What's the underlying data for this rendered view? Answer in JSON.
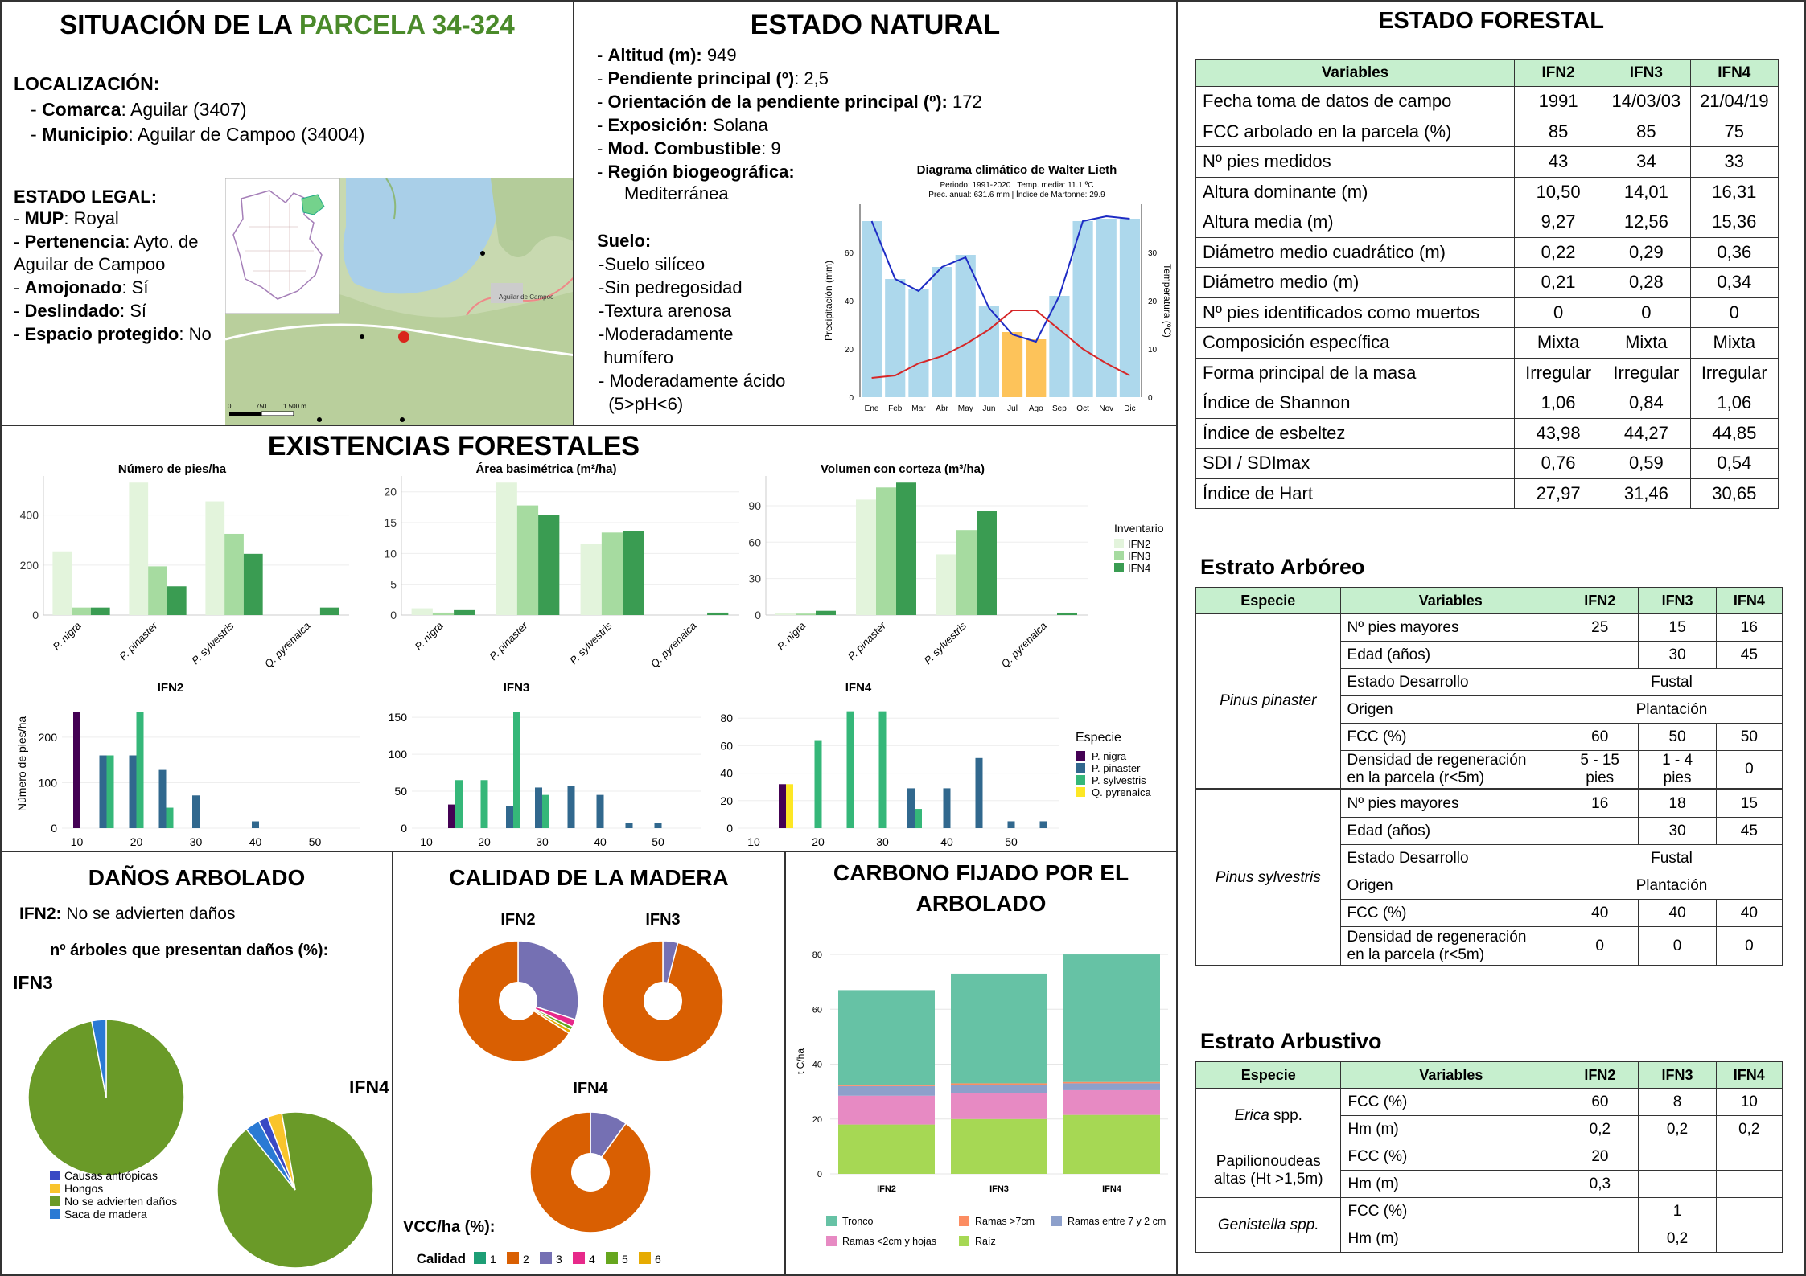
{
  "situacion": {
    "title_prefix": "SITUACIÓN DE LA ",
    "title_highlight": "PARCELA 34-324",
    "highlight_color": "#4a8a2a",
    "localizacion_label": "LOCALIZACIÓN:",
    "comarca_label": "Comarca",
    "comarca_value": ": Aguilar (3407)",
    "municipio_label": "Municipio",
    "municipio_value": ": Aguilar de Campoo  (34004)",
    "estado_legal_label": "ESTADO LEGAL:",
    "mup_label": "MUP",
    "mup_value": ": Royal",
    "pertenencia_label": "Pertenencia",
    "pertenencia_value": ": Ayto.  de",
    "pertenencia_value2": "Aguilar de Campoo",
    "amojonado_label": "Amojonado",
    "amojonado_value": ": Sí",
    "deslindado_label": "Deslindado",
    "deslindado_value": ": Sí",
    "espacio_label": "Espacio protegido",
    "espacio_value": ": No",
    "map": {
      "town_label": "Aguilar de Campoo",
      "scale_0": "0",
      "scale_1": "750",
      "scale_2": "1.500 m"
    }
  },
  "estado_natural": {
    "title": "ESTADO NATURAL",
    "items": [
      {
        "label": "Altitud (m):",
        "value": " 949"
      },
      {
        "label": "Pendiente principal (º)",
        "value": ": 2,5"
      },
      {
        "label": "Orientación  de la pendiente principal (º):",
        "value": " 172"
      },
      {
        "label": "Exposición:",
        "value": " Solana"
      },
      {
        "label": "Mod. Combustible",
        "value": ": 9"
      },
      {
        "label": "Región biogeográfica:",
        "value": ""
      }
    ],
    "region_value": "Mediterránea",
    "suelo_label": "Suelo:",
    "suelo_items": [
      "-Suelo silíceo",
      "-Sin pedregosidad",
      "-Textura arenosa",
      "-Moderadamente",
      " humífero",
      "- Moderadamente ácido",
      "  (5>pH<6)"
    ]
  },
  "climograma": {
    "title": "Diagrama climático de Walter Lieth",
    "subtitle1": "Periodo: 1991-2020 | Temp. media: 11.1 ºC",
    "subtitle2": "Prec. anual: 631.6 mm | Índice de Martonne: 29.9",
    "ylabel_left": "Precipitación (mm)",
    "ylabel_right": "Temperatura (ºC)",
    "months": [
      "Ene",
      "Feb",
      "Mar",
      "Abr",
      "May",
      "Jun",
      "Jul",
      "Ago",
      "Sep",
      "Oct",
      "Nov",
      "Dic"
    ],
    "precip": [
      73,
      49,
      45,
      54,
      59,
      38,
      27,
      24,
      42,
      73,
      74,
      74
    ],
    "temp": [
      4,
      4.5,
      7,
      8.5,
      11,
      14,
      18,
      18,
      14,
      10,
      7,
      4.5
    ],
    "precip_line": [
      73,
      49,
      44,
      54,
      58,
      37,
      26,
      23,
      42,
      73,
      75,
      74
    ],
    "dry_months": [
      6,
      7
    ],
    "left_ticks": [
      0,
      20,
      40,
      60
    ],
    "right_ticks": [
      0,
      10,
      20,
      30
    ],
    "bar_color": "#add8ec",
    "dry_color": "#fdc35a"
  },
  "estado_forestal": {
    "title": "ESTADO FORESTAL",
    "headers": [
      "Variables",
      "IFN2",
      "IFN3",
      "IFN4"
    ],
    "rows": [
      [
        "Fecha toma de datos de campo",
        "1991",
        "14/03/03",
        "21/04/19"
      ],
      [
        "FCC arbolado en la parcela (%)",
        "85",
        "85",
        "75"
      ],
      [
        "Nº pies medidos",
        "43",
        "34",
        "33"
      ],
      [
        "Altura dominante (m)",
        "10,50",
        "14,01",
        "16,31"
      ],
      [
        "Altura media (m)",
        "9,27",
        "12,56",
        "15,36"
      ],
      [
        "Diámetro medio cuadrático (m)",
        "0,22",
        "0,29",
        "0,36"
      ],
      [
        "Diámetro medio (m)",
        "0,21",
        "0,28",
        "0,34"
      ],
      [
        "Nº pies identificados como muertos",
        "0",
        "0",
        "0"
      ],
      [
        "Composición específica",
        "Mixta",
        "Mixta",
        "Mixta"
      ],
      [
        "Forma principal de la masa",
        "Irregular",
        "Irregular",
        "Irregular"
      ],
      [
        "Índice de Shannon",
        "1,06",
        "0,84",
        "1,06"
      ],
      [
        "Índice de esbeltez",
        "43,98",
        "44,27",
        "44,85"
      ],
      [
        "SDI / SDImax",
        "0,76",
        "0,59",
        "0,54"
      ],
      [
        "Índice de Hart",
        "27,97",
        "31,46",
        "30,65"
      ]
    ]
  },
  "estrato_arboreo": {
    "title": "Estrato Arbóreo",
    "headers": [
      "Especie",
      "Variables",
      "IFN2",
      "IFN3",
      "IFN4"
    ],
    "species": [
      {
        "name": "Pinus pinaster",
        "rows": [
          [
            "Nº pies mayores",
            "25",
            "15",
            "16"
          ],
          [
            "Edad (años)",
            "",
            "30",
            "45"
          ],
          [
            "Estado Desarrollo",
            "Fustal"
          ],
          [
            "Origen",
            "Plantación"
          ],
          [
            "FCC (%)",
            "60",
            "50",
            "50"
          ],
          [
            "Densidad de regeneración|en la parcela (r<5m)",
            "5 - 15|pies",
            "1 - 4|pies",
            "0"
          ]
        ]
      },
      {
        "name": "Pinus sylvestris",
        "rows": [
          [
            "Nº pies mayores",
            "16",
            "18",
            "15"
          ],
          [
            "Edad (años)",
            "",
            "30",
            "45"
          ],
          [
            "Estado Desarrollo",
            "Fustal"
          ],
          [
            "Origen",
            "Plantación"
          ],
          [
            "FCC (%)",
            "40",
            "40",
            "40"
          ],
          [
            "Densidad de regeneración|en la parcela (r<5m)",
            "0",
            "0",
            "0"
          ]
        ]
      }
    ]
  },
  "estrato_arbustivo": {
    "title": "Estrato Arbustivo",
    "headers": [
      "Especie",
      "Variables",
      "IFN2",
      "IFN3",
      "IFN4"
    ],
    "species": [
      {
        "name": "Erica spp.",
        "name_italic": "Erica",
        "name_rest": " spp.",
        "rows": [
          [
            "FCC (%)",
            "60",
            "8",
            "10"
          ],
          [
            "Hm (m)",
            "0,2",
            "0,2",
            "0,2"
          ]
        ]
      },
      {
        "name": "Papilionoudeas altas (Ht >1,5m)",
        "name_line1": "Papilionoudeas",
        "name_line2": "altas (Ht >1,5m)",
        "rows": [
          [
            "FCC (%)",
            "20",
            "",
            ""
          ],
          [
            "Hm (m)",
            "0,3",
            "",
            ""
          ]
        ]
      },
      {
        "name": "Genistella spp.",
        "rows": [
          [
            "FCC (%)",
            "",
            "1",
            ""
          ],
          [
            "Hm (m)",
            "",
            "0,2",
            ""
          ]
        ]
      }
    ]
  },
  "existencias": {
    "title": "EXISTENCIAS FORESTALES",
    "legend_title": "Inventario",
    "inventories": [
      "IFN2",
      "IFN3",
      "IFN4"
    ],
    "inv_colors": [
      "#e3f4dc",
      "#a6dba0",
      "#3a9c52"
    ],
    "species_labels": [
      "P. nigra",
      "P. pinaster",
      "P. sylvestris",
      "Q. pyrenaica"
    ],
    "charts": [
      {
        "title": "Número de pies/ha",
        "ticks": [
          0,
          200,
          400
        ],
        "ymax": 530,
        "values": [
          [
            255,
            30,
            30
          ],
          [
            530,
            195,
            115
          ],
          [
            455,
            325,
            245
          ],
          [
            0,
            0,
            30
          ]
        ]
      },
      {
        "title": "Área basimétrica (m²/ha)",
        "ticks": [
          0,
          5,
          10,
          15,
          20
        ],
        "ymax": 21.5,
        "values": [
          [
            1.1,
            0.4,
            0.8
          ],
          [
            21.5,
            17.8,
            16.2
          ],
          [
            11.6,
            13.4,
            13.7
          ],
          [
            0,
            0,
            0.4
          ]
        ]
      },
      {
        "title": "Volumen con corteza (m³/ha)",
        "ticks": [
          0,
          30,
          60,
          90
        ],
        "ymax": 109,
        "values": [
          [
            1.5,
            1.2,
            3.5
          ],
          [
            95,
            105,
            109
          ],
          [
            50,
            70,
            86
          ],
          [
            0,
            0,
            2
          ]
        ]
      }
    ]
  },
  "diametric": {
    "legend_title": "Especie",
    "species": [
      "P. nigra",
      "P. pinaster",
      "P. sylvestris",
      "Q. pyrenaica"
    ],
    "colors": [
      "#440154",
      "#31688e",
      "#35b779",
      "#fde725"
    ],
    "ylabel": "Número de pies/ha",
    "xticks": [
      10,
      20,
      30,
      40,
      50
    ],
    "panels": [
      {
        "title": "IFN2",
        "ticks": [
          0,
          100,
          200
        ],
        "ymax": 260,
        "bars": [
          {
            "x": 10,
            "s": 0,
            "v": 255
          },
          {
            "x": 15,
            "s": 1,
            "v": 160
          },
          {
            "x": 15,
            "s": 2,
            "v": 160
          },
          {
            "x": 20,
            "s": 1,
            "v": 160
          },
          {
            "x": 20,
            "s": 2,
            "v": 255
          },
          {
            "x": 25,
            "s": 1,
            "v": 128
          },
          {
            "x": 25,
            "s": 2,
            "v": 45
          },
          {
            "x": 30,
            "s": 1,
            "v": 72
          },
          {
            "x": 40,
            "s": 1,
            "v": 15
          }
        ]
      },
      {
        "title": "IFN3",
        "ticks": [
          0,
          50,
          100,
          150
        ],
        "ymax": 160,
        "bars": [
          {
            "x": 15,
            "s": 0,
            "v": 32
          },
          {
            "x": 15,
            "s": 2,
            "v": 65
          },
          {
            "x": 20,
            "s": 2,
            "v": 65
          },
          {
            "x": 25,
            "s": 1,
            "v": 30
          },
          {
            "x": 25,
            "s": 2,
            "v": 157
          },
          {
            "x": 30,
            "s": 1,
            "v": 55
          },
          {
            "x": 30,
            "s": 2,
            "v": 45
          },
          {
            "x": 35,
            "s": 1,
            "v": 57
          },
          {
            "x": 40,
            "s": 1,
            "v": 45
          },
          {
            "x": 45,
            "s": 1,
            "v": 7
          },
          {
            "x": 50,
            "s": 1,
            "v": 7
          }
        ]
      },
      {
        "title": "IFN4",
        "ticks": [
          0,
          20,
          40,
          60,
          80
        ],
        "ymax": 86,
        "bars": [
          {
            "x": 15,
            "s": 0,
            "v": 32
          },
          {
            "x": 15,
            "s": 3,
            "v": 32
          },
          {
            "x": 20,
            "s": 2,
            "v": 64
          },
          {
            "x": 25,
            "s": 2,
            "v": 85
          },
          {
            "x": 30,
            "s": 2,
            "v": 85
          },
          {
            "x": 35,
            "s": 1,
            "v": 29
          },
          {
            "x": 35,
            "s": 2,
            "v": 14
          },
          {
            "x": 40,
            "s": 1,
            "v": 29
          },
          {
            "x": 45,
            "s": 1,
            "v": 51
          },
          {
            "x": 50,
            "s": 1,
            "v": 5
          },
          {
            "x": 55,
            "s": 1,
            "v": 5
          }
        ]
      }
    ]
  },
  "danos": {
    "title": "DAÑOS ARBOLADO",
    "ifn2_label": "IFN2:",
    "ifn2_text": " No se advierten daños",
    "subtitle": "nº árboles que presentan daños (%):",
    "ifn3_label": "IFN3",
    "ifn4_label": "IFN4",
    "legend": [
      "Causas antrópicas",
      "Hongos",
      "No se advierten daños",
      "Saca de madera"
    ],
    "colors": [
      "#3949c4",
      "#f9c42b",
      "#6a9a28",
      "#2a7ad4"
    ],
    "ifn3_values": [
      0,
      0,
      97,
      3
    ],
    "ifn4_values": [
      2,
      3,
      92,
      3
    ]
  },
  "calidad": {
    "title": "CALIDAD DE LA MADERA",
    "labels": [
      "IFN2",
      "IFN3",
      "IFN4"
    ],
    "vcc_label": "VCC/ha (%):",
    "legend_title": "Calidad",
    "classes": [
      "1",
      "2",
      "3",
      "4",
      "5",
      "6"
    ],
    "colors": [
      "#1d9e75",
      "#d95f02",
      "#7570b3",
      "#e7298a",
      "#66a61e",
      "#e6ab02"
    ],
    "ifn2": [
      0,
      66,
      30,
      2,
      1,
      1
    ],
    "ifn3": [
      0,
      96,
      4,
      0,
      0,
      0
    ],
    "ifn4": [
      0,
      90,
      10,
      0,
      0,
      0
    ]
  },
  "carbono": {
    "title_line1": "CARBONO FIJADO POR EL",
    "title_line2": "ARBOLADO",
    "ylabel": "t C/ha",
    "ticks": [
      0,
      20,
      40,
      60,
      80
    ],
    "ymax": 85,
    "categories": [
      "IFN2",
      "IFN3",
      "IFN4"
    ],
    "series": [
      {
        "name": "Raíz",
        "color": "#a6d854",
        "values": [
          18,
          20,
          21.5
        ]
      },
      {
        "name": "Ramas <2cm y hojas",
        "color": "#e78ac3",
        "values": [
          10.5,
          9.5,
          9
        ]
      },
      {
        "name": "Ramas entre 7 y 2 cm",
        "color": "#8da0cb",
        "values": [
          3.5,
          3,
          2.5
        ]
      },
      {
        "name": "Ramas >7cm",
        "color": "#fc8d62",
        "values": [
          0.5,
          0.5,
          0.5
        ]
      },
      {
        "name": "Tronco",
        "color": "#66c2a5",
        "values": [
          34.5,
          40,
          46.5
        ]
      }
    ],
    "legend_order": [
      "Tronco",
      "Ramas >7cm",
      "Ramas entre 7 y 2 cm",
      "Ramas <2cm y hojas",
      "Raíz"
    ]
  }
}
